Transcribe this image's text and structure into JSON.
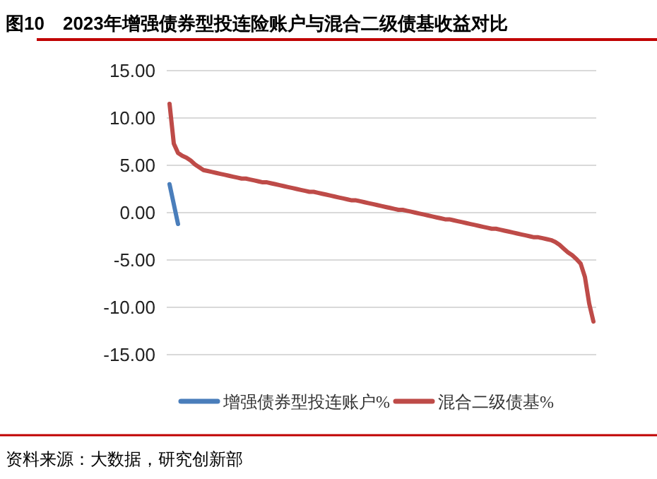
{
  "chart_data": {
    "type": "line",
    "title": "图10　2023年增强债券型投连险账户与混合二级债基收益对比",
    "annotations": [
      "资料来源：大数据，研究创新部"
    ],
    "categories": [
      null,
      null,
      null,
      null,
      null,
      null,
      null,
      null,
      null,
      null,
      null,
      null,
      null,
      null,
      null,
      null,
      null,
      null,
      null,
      null,
      null,
      null,
      null,
      null,
      null,
      null,
      null,
      null,
      null,
      null,
      null,
      null,
      null,
      null,
      null,
      null,
      null,
      null,
      null,
      null,
      null,
      null,
      null,
      null,
      null,
      null,
      null,
      null,
      null,
      null,
      null,
      null,
      null,
      null,
      null,
      null,
      null,
      null,
      null,
      null,
      null,
      null,
      null,
      null,
      null,
      null,
      null,
      null,
      null,
      null,
      null,
      null,
      null,
      null,
      null,
      null,
      null,
      null,
      null,
      null,
      null,
      null,
      null,
      null,
      null,
      null,
      null,
      null,
      null,
      null,
      null,
      null,
      null,
      null,
      null,
      null,
      null,
      null,
      null,
      null,
      null
    ],
    "ylim": [
      -15,
      15
    ],
    "yticks": [
      {
        "value": 15,
        "label": "15.00"
      },
      {
        "value": 10,
        "label": "10.00"
      },
      {
        "value": 5,
        "label": "5.00"
      },
      {
        "value": 0,
        "label": "0.00"
      },
      {
        "value": -5,
        "label": "-5.00"
      },
      {
        "value": -10,
        "label": "-10.00"
      },
      {
        "value": -15,
        "label": "-15.00"
      }
    ],
    "tick_labels": "y",
    "grid": "y",
    "legend": "bottom",
    "series": [
      {
        "name": "增强债券型投连账户%",
        "color": "#4a7ebb",
        "values": [
          3.0,
          0.9,
          -1.2,
          null,
          null,
          null,
          null,
          null,
          null,
          null,
          null,
          null,
          null,
          null,
          null,
          null,
          null,
          null,
          null,
          null,
          null,
          null,
          null,
          null,
          null,
          null,
          null,
          null,
          null,
          null,
          null,
          null,
          null,
          null,
          null,
          null,
          null,
          null,
          null,
          null,
          null,
          null,
          null,
          null,
          null,
          null,
          null,
          null,
          null,
          null,
          null,
          null,
          null,
          null,
          null,
          null,
          null,
          null,
          null,
          null,
          null,
          null,
          null,
          null,
          null,
          null,
          null,
          null,
          null,
          null,
          null,
          null,
          null,
          null,
          null,
          null,
          null,
          null,
          null,
          null,
          null,
          null,
          null,
          null,
          null,
          null,
          null,
          null,
          null,
          null,
          null,
          null,
          null,
          null,
          null,
          null,
          null,
          null,
          null,
          null,
          null
        ]
      },
      {
        "name": "混合二级债基%",
        "color": "#be4b48",
        "values": [
          11.5,
          7.3,
          6.3,
          6.0,
          5.8,
          5.5,
          5.1,
          4.8,
          4.5,
          4.4,
          4.3,
          4.2,
          4.1,
          4.0,
          3.9,
          3.8,
          3.7,
          3.6,
          3.6,
          3.5,
          3.4,
          3.3,
          3.2,
          3.2,
          3.1,
          3.0,
          2.9,
          2.8,
          2.7,
          2.6,
          2.5,
          2.4,
          2.3,
          2.2,
          2.2,
          2.1,
          2.0,
          1.9,
          1.8,
          1.7,
          1.6,
          1.5,
          1.4,
          1.3,
          1.3,
          1.2,
          1.1,
          1.0,
          0.9,
          0.8,
          0.7,
          0.6,
          0.5,
          0.4,
          0.3,
          0.3,
          0.2,
          0.1,
          0.0,
          -0.1,
          -0.2,
          -0.3,
          -0.4,
          -0.5,
          -0.6,
          -0.7,
          -0.7,
          -0.8,
          -0.9,
          -1.0,
          -1.1,
          -1.2,
          -1.3,
          -1.4,
          -1.5,
          -1.6,
          -1.7,
          -1.7,
          -1.8,
          -1.9,
          -2.0,
          -2.1,
          -2.2,
          -2.3,
          -2.4,
          -2.5,
          -2.6,
          -2.6,
          -2.7,
          -2.8,
          -2.9,
          -3.1,
          -3.4,
          -3.8,
          -4.2,
          -4.5,
          -4.9,
          -5.4,
          -6.8,
          -9.6,
          -11.5
        ]
      }
    ]
  }
}
